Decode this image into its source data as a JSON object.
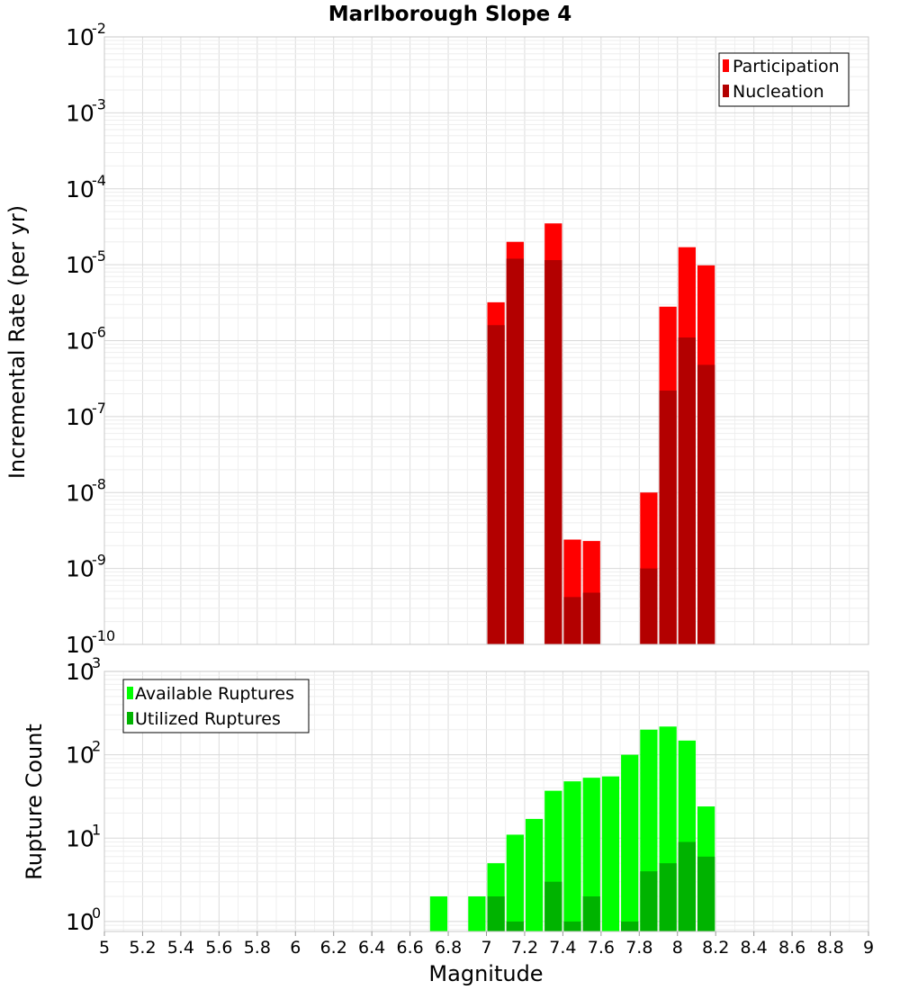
{
  "chart_data": [
    {
      "type": "bar",
      "title": "Marlborough Slope 4",
      "ylabel": "Incremental Rate (per yr)",
      "xlabel": "",
      "y_scale": "log",
      "ylim_exponents": [
        -10,
        -2
      ],
      "y_tick_base": "10",
      "y_tick_exponents": [
        "-2",
        "-3",
        "-4",
        "-5",
        "-6",
        "-7",
        "-8",
        "-9",
        "-10"
      ],
      "grid": true,
      "legend_position": "top-right",
      "series": [
        {
          "name": "Participation",
          "color": "#ff0000",
          "points": [
            {
              "x": 7.05,
              "y": 3.2e-06
            },
            {
              "x": 7.15,
              "y": 2e-05
            },
            {
              "x": 7.35,
              "y": 3.5e-05
            },
            {
              "x": 7.45,
              "y": 2.4e-09
            },
            {
              "x": 7.55,
              "y": 2.3e-09
            },
            {
              "x": 7.85,
              "y": 1e-08
            },
            {
              "x": 7.95,
              "y": 2.8e-06
            },
            {
              "x": 8.05,
              "y": 1.7e-05
            },
            {
              "x": 8.15,
              "y": 9.8e-06
            }
          ]
        },
        {
          "name": "Nucleation",
          "color": "#b30000",
          "points": [
            {
              "x": 7.05,
              "y": 1.6e-06
            },
            {
              "x": 7.15,
              "y": 1.2e-05
            },
            {
              "x": 7.35,
              "y": 1.15e-05
            },
            {
              "x": 7.45,
              "y": 4.2e-10
            },
            {
              "x": 7.55,
              "y": 4.8e-10
            },
            {
              "x": 7.85,
              "y": 1e-09
            },
            {
              "x": 7.95,
              "y": 2.2e-07
            },
            {
              "x": 8.05,
              "y": 1.1e-06
            },
            {
              "x": 8.15,
              "y": 4.8e-07
            }
          ]
        }
      ]
    },
    {
      "type": "bar",
      "title": "",
      "ylabel": "Rupture Count",
      "xlabel": "Magnitude",
      "y_scale": "log",
      "ylim_exponents": [
        -0.12,
        3
      ],
      "y_tick_base": "10",
      "y_tick_exponents": [
        "3",
        "2",
        "1",
        "0"
      ],
      "xlim": [
        5,
        9
      ],
      "x_ticks": [
        "5",
        "5.2",
        "5.4",
        "5.6",
        "5.8",
        "6",
        "6.2",
        "6.4",
        "6.6",
        "6.8",
        "7",
        "7.2",
        "7.4",
        "7.6",
        "7.8",
        "8",
        "8.2",
        "8.4",
        "8.6",
        "8.8",
        "9"
      ],
      "grid": true,
      "legend_position": "top-left",
      "series": [
        {
          "name": "Available Ruptures",
          "color": "#00ff00",
          "points": [
            {
              "x": 6.75,
              "y": 2
            },
            {
              "x": 6.95,
              "y": 2
            },
            {
              "x": 7.05,
              "y": 5
            },
            {
              "x": 7.15,
              "y": 11
            },
            {
              "x": 7.25,
              "y": 17
            },
            {
              "x": 7.35,
              "y": 37
            },
            {
              "x": 7.45,
              "y": 48
            },
            {
              "x": 7.55,
              "y": 53
            },
            {
              "x": 7.65,
              "y": 55
            },
            {
              "x": 7.75,
              "y": 100
            },
            {
              "x": 7.85,
              "y": 200
            },
            {
              "x": 7.95,
              "y": 218
            },
            {
              "x": 8.05,
              "y": 148
            },
            {
              "x": 8.15,
              "y": 24
            }
          ]
        },
        {
          "name": "Utilized Ruptures",
          "color": "#00b300",
          "points": [
            {
              "x": 7.05,
              "y": 2
            },
            {
              "x": 7.15,
              "y": 1
            },
            {
              "x": 7.35,
              "y": 3
            },
            {
              "x": 7.45,
              "y": 1
            },
            {
              "x": 7.55,
              "y": 2
            },
            {
              "x": 7.75,
              "y": 1
            },
            {
              "x": 7.85,
              "y": 4
            },
            {
              "x": 7.95,
              "y": 5
            },
            {
              "x": 8.05,
              "y": 9
            },
            {
              "x": 8.15,
              "y": 6
            }
          ]
        }
      ]
    }
  ]
}
